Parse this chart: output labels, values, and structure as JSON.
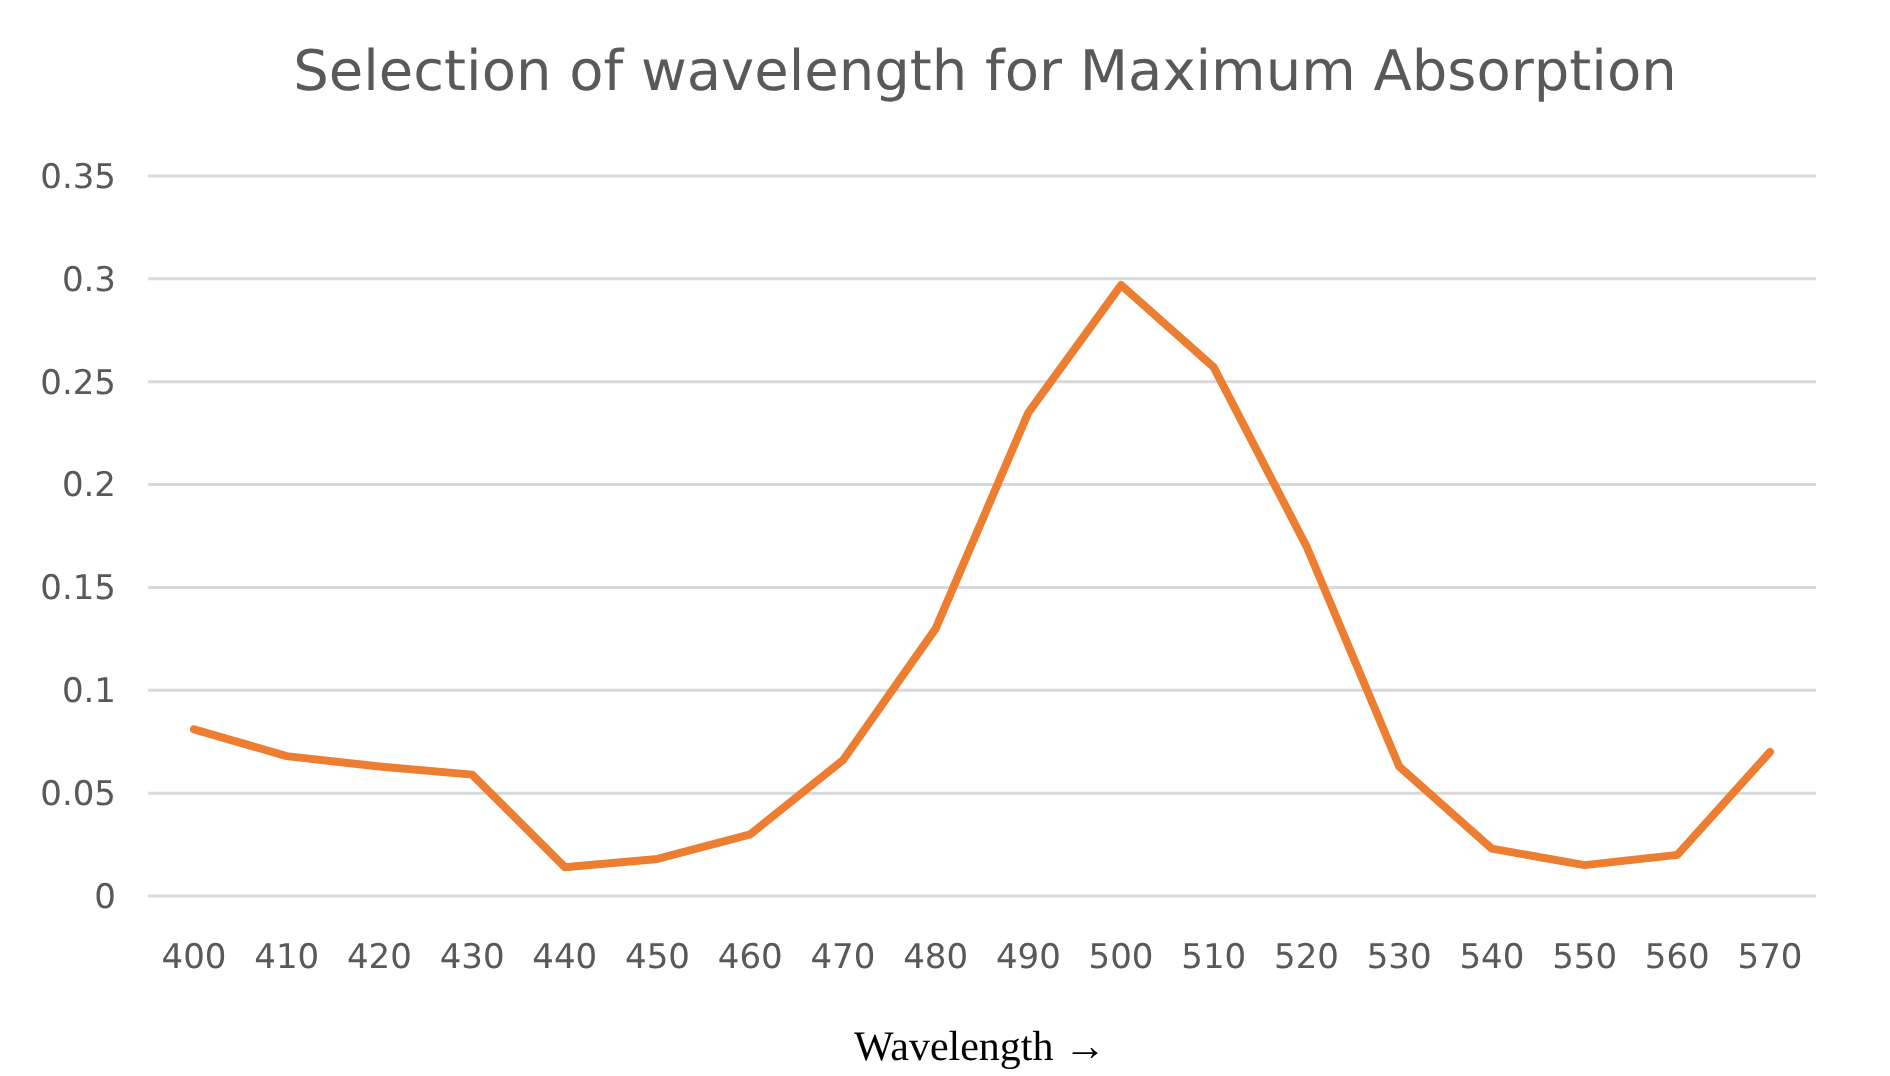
{
  "chart_data": {
    "type": "line",
    "title": "Selection of wavelength for Maximum Absorption",
    "xlabel": "Wavelength →",
    "categories": [
      "400",
      "410",
      "420",
      "430",
      "440",
      "450",
      "460",
      "470",
      "480",
      "490",
      "500",
      "510",
      "520",
      "530",
      "540",
      "550",
      "560",
      "570"
    ],
    "series": [
      {
        "color": "#ed7d31",
        "values": [
          0.081,
          0.068,
          0.063,
          0.059,
          0.014,
          0.018,
          0.03,
          0.066,
          0.13,
          0.235,
          0.297,
          0.257,
          0.17,
          0.063,
          0.023,
          0.015,
          0.02,
          0.07
        ]
      }
    ],
    "ylim": [
      0,
      0.35
    ],
    "yticks": [
      0,
      0.05,
      0.1,
      0.15,
      0.2,
      0.25,
      0.3,
      0.35
    ],
    "grid": "y",
    "marker": "none",
    "line_style": "solid"
  }
}
